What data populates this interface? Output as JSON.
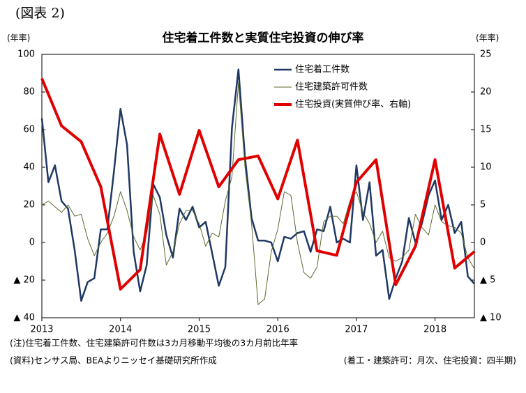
{
  "chart_data": {
    "type": "line",
    "figure_label": "(図表 2)",
    "title": "住宅着工件数と実質住宅投資の伸び率",
    "ylabel": "(年率)",
    "y2label": "(年率)",
    "note": "(注)住宅着工件数、住宅建築許可件数は3カ月移動平均後の3カ月前比年率",
    "source": "(資料)センサス局、BEAよりニッセイ基礎研究所作成",
    "frequency_note": "(着工・建築許可：月次、住宅投資：四半期)",
    "xlim": [
      2013,
      2018.5
    ],
    "xticks": [
      2013,
      2014,
      2015,
      2016,
      2017,
      2018
    ],
    "ylim": [
      -40,
      100
    ],
    "yticks": [
      {
        "value": -40,
        "label": "▲ 40"
      },
      {
        "value": -20,
        "label": "▲ 20"
      },
      0,
      20,
      40,
      60,
      80,
      100
    ],
    "y2lim": [
      -10,
      25
    ],
    "y2ticks": [
      {
        "value": -10,
        "label": "▲ 10"
      },
      {
        "value": -5,
        "label": "▲ 5"
      },
      0,
      5,
      10,
      15,
      20,
      25
    ],
    "grid": false,
    "legend": "top",
    "series": [
      {
        "name": "住宅着工件数",
        "color": "#1f3864",
        "width": 2.5,
        "x": [
          2013,
          2013.083,
          2013.167,
          2013.25,
          2013.333,
          2013.417,
          2013.5,
          2013.583,
          2013.667,
          2013.75,
          2013.833,
          2013.917,
          2014,
          2014.083,
          2014.167,
          2014.25,
          2014.333,
          2014.417,
          2014.5,
          2014.583,
          2014.667,
          2014.75,
          2014.833,
          2014.917,
          2015,
          2015.083,
          2015.167,
          2015.25,
          2015.333,
          2015.417,
          2015.5,
          2015.583,
          2015.667,
          2015.75,
          2015.833,
          2015.917,
          2016,
          2016.083,
          2016.167,
          2016.25,
          2016.333,
          2016.417,
          2016.5,
          2016.583,
          2016.667,
          2016.75,
          2016.833,
          2016.917,
          2017,
          2017.083,
          2017.167,
          2017.25,
          2017.333,
          2017.417,
          2017.5,
          2017.583,
          2017.667,
          2017.75,
          2017.833,
          2017.917,
          2018,
          2018.083,
          2018.167,
          2018.25,
          2018.333,
          2018.417,
          2018.5
        ],
        "values": [
          66,
          32,
          41,
          22,
          18,
          -4,
          -31,
          -21,
          -19,
          7,
          7,
          38,
          71,
          52,
          -5,
          -26,
          -12,
          31,
          24,
          4,
          -8,
          18,
          12,
          19,
          8,
          11,
          -6,
          -23,
          -13,
          61,
          92,
          45,
          13,
          1,
          1,
          0,
          -10,
          3,
          2,
          5,
          6,
          -5,
          7,
          6,
          19,
          0,
          2,
          0,
          41,
          12,
          32,
          -7,
          -4,
          -30,
          -19,
          -10,
          13,
          0,
          10,
          25,
          33,
          12,
          20,
          5,
          11,
          -18,
          -22
        ]
      },
      {
        "name": "住宅建築許可件数",
        "color": "#5a6b2e",
        "width": 1,
        "x": [
          2013,
          2013.083,
          2013.167,
          2013.25,
          2013.333,
          2013.417,
          2013.5,
          2013.583,
          2013.667,
          2013.75,
          2013.833,
          2013.917,
          2014,
          2014.083,
          2014.167,
          2014.25,
          2014.333,
          2014.417,
          2014.5,
          2014.583,
          2014.667,
          2014.75,
          2014.833,
          2014.917,
          2015,
          2015.083,
          2015.167,
          2015.25,
          2015.333,
          2015.417,
          2015.5,
          2015.583,
          2015.667,
          2015.75,
          2015.833,
          2015.917,
          2016,
          2016.083,
          2016.167,
          2016.25,
          2016.333,
          2016.417,
          2016.5,
          2016.583,
          2016.667,
          2016.75,
          2016.833,
          2016.917,
          2017,
          2017.083,
          2017.167,
          2017.25,
          2017.333,
          2017.417,
          2017.5,
          2017.583,
          2017.667,
          2017.75,
          2017.833,
          2017.917,
          2018,
          2018.083,
          2018.167,
          2018.25,
          2018.333,
          2018.417,
          2018.5
        ],
        "values": [
          20,
          22,
          19,
          16,
          20,
          14,
          15,
          2,
          -7,
          0,
          5,
          14,
          27,
          17,
          3,
          -4,
          5,
          25,
          15,
          -12,
          -5,
          10,
          17,
          17,
          10,
          -2,
          5,
          3,
          22,
          35,
          85,
          40,
          10,
          -33,
          -30,
          -5,
          7,
          27,
          25,
          0,
          -16,
          -19,
          -13,
          11,
          14,
          14,
          10,
          22,
          27,
          16,
          10,
          0,
          6,
          -8,
          -10,
          -8,
          -4,
          15,
          8,
          4,
          20,
          11,
          9,
          8,
          5,
          -8,
          -14
        ]
      },
      {
        "name": "住宅投資(実質伸び率、右軸)",
        "color": "#e00000",
        "width": 4,
        "axis": "y2",
        "x": [
          2013,
          2013.25,
          2013.5,
          2013.75,
          2014,
          2014.25,
          2014.5,
          2014.75,
          2015,
          2015.25,
          2015.5,
          2015.75,
          2016,
          2016.25,
          2016.5,
          2016.75,
          2017,
          2017.25,
          2017.5,
          2017.75,
          2018,
          2018.25,
          2018.5
        ],
        "values": [
          21.8,
          15.5,
          13.4,
          7.4,
          -6.2,
          -3.6,
          14.4,
          6.4,
          14.9,
          7.4,
          11.0,
          11.5,
          5.8,
          13.6,
          -1.1,
          -1.7,
          8.0,
          11.0,
          -5.6,
          -0.5,
          11.0,
          -3.4,
          -1.2
        ]
      }
    ]
  }
}
